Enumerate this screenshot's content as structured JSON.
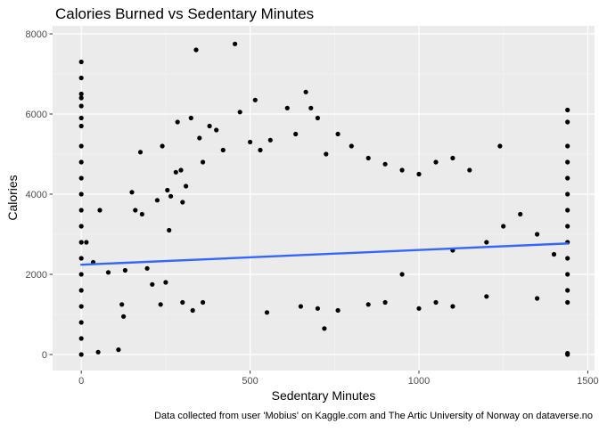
{
  "chart_data": {
    "type": "scatter",
    "title": "Calories Burned vs Sedentary Minutes",
    "xlabel": "Sedentary Minutes",
    "ylabel": "Calories",
    "caption": "Data collected from user 'Mobius' on Kaggle.com and The Artic University of Norway on dataverse.no",
    "xlim": [
      -85,
      1520
    ],
    "ylim": [
      -400,
      8200
    ],
    "x_ticks": [
      0,
      500,
      1000,
      1500
    ],
    "y_ticks": [
      0,
      2000,
      4000,
      6000,
      8000
    ],
    "x_tick_labels": [
      "0",
      "500",
      "1000",
      "1500"
    ],
    "y_tick_labels": [
      "0",
      "2000",
      "4000",
      "6000",
      "8000"
    ],
    "grid": true,
    "panel_background": "#EBEBEB",
    "point_color": "#000000",
    "trend_color": "#3366FF",
    "trend_line": {
      "x": [
        0,
        1440
      ],
      "y": [
        2240,
        2770
      ]
    },
    "points": [
      [
        0,
        7300
      ],
      [
        0,
        6900
      ],
      [
        0,
        6500
      ],
      [
        0,
        6400
      ],
      [
        0,
        6200
      ],
      [
        0,
        5900
      ],
      [
        0,
        5700
      ],
      [
        0,
        5200
      ],
      [
        0,
        4800
      ],
      [
        0,
        4400
      ],
      [
        0,
        4000
      ],
      [
        0,
        3600
      ],
      [
        0,
        3200
      ],
      [
        0,
        2800
      ],
      [
        0,
        2400
      ],
      [
        0,
        2000
      ],
      [
        0,
        1600
      ],
      [
        0,
        1200
      ],
      [
        0,
        800
      ],
      [
        0,
        400
      ],
      [
        0,
        0
      ],
      [
        15,
        2800
      ],
      [
        35,
        2300
      ],
      [
        50,
        60
      ],
      [
        55,
        3600
      ],
      [
        80,
        2050
      ],
      [
        110,
        120
      ],
      [
        120,
        1250
      ],
      [
        125,
        950
      ],
      [
        130,
        2100
      ],
      [
        150,
        4050
      ],
      [
        160,
        3600
      ],
      [
        175,
        5050
      ],
      [
        180,
        3500
      ],
      [
        195,
        2150
      ],
      [
        210,
        1750
      ],
      [
        225,
        3850
      ],
      [
        235,
        1250
      ],
      [
        240,
        5200
      ],
      [
        255,
        4100
      ],
      [
        265,
        3950
      ],
      [
        280,
        4550
      ],
      [
        285,
        5800
      ],
      [
        295,
        4600
      ],
      [
        300,
        3800
      ],
      [
        310,
        4200
      ],
      [
        325,
        5900
      ],
      [
        340,
        7600
      ],
      [
        350,
        5400
      ],
      [
        360,
        4800
      ],
      [
        380,
        5700
      ],
      [
        400,
        5600
      ],
      [
        420,
        5100
      ],
      [
        455,
        7750
      ],
      [
        470,
        6050
      ],
      [
        500,
        5300
      ],
      [
        515,
        6350
      ],
      [
        530,
        5100
      ],
      [
        560,
        5350
      ],
      [
        610,
        6150
      ],
      [
        635,
        5500
      ],
      [
        665,
        6550
      ],
      [
        680,
        6150
      ],
      [
        700,
        5900
      ],
      [
        725,
        5000
      ],
      [
        760,
        5500
      ],
      [
        800,
        5200
      ],
      [
        850,
        4900
      ],
      [
        900,
        4750
      ],
      [
        950,
        4600
      ],
      [
        1000,
        4500
      ],
      [
        1050,
        4800
      ],
      [
        1100,
        4900
      ],
      [
        1150,
        4600
      ],
      [
        1240,
        5200
      ],
      [
        1300,
        3500
      ],
      [
        1440,
        6100
      ],
      [
        1440,
        5800
      ],
      [
        1440,
        5200
      ],
      [
        1440,
        4800
      ],
      [
        1440,
        4400
      ],
      [
        1440,
        4000
      ],
      [
        1440,
        3600
      ],
      [
        1440,
        3200
      ],
      [
        1440,
        2800
      ],
      [
        1440,
        2400
      ],
      [
        1440,
        2000
      ],
      [
        1440,
        1600
      ],
      [
        1440,
        1300
      ],
      [
        1440,
        30
      ],
      [
        1440,
        0
      ],
      [
        250,
        1800
      ],
      [
        260,
        3100
      ],
      [
        300,
        1300
      ],
      [
        330,
        1100
      ],
      [
        360,
        1300
      ],
      [
        550,
        1050
      ],
      [
        650,
        1200
      ],
      [
        700,
        1150
      ],
      [
        720,
        650
      ],
      [
        760,
        1100
      ],
      [
        850,
        1250
      ],
      [
        900,
        1300
      ],
      [
        1000,
        1150
      ],
      [
        1050,
        1300
      ],
      [
        1100,
        1200
      ],
      [
        1200,
        1450
      ],
      [
        1350,
        1400
      ],
      [
        1250,
        3200
      ],
      [
        1350,
        3000
      ],
      [
        1400,
        2500
      ],
      [
        1200,
        2800
      ],
      [
        1100,
        2600
      ],
      [
        950,
        2000
      ]
    ]
  }
}
